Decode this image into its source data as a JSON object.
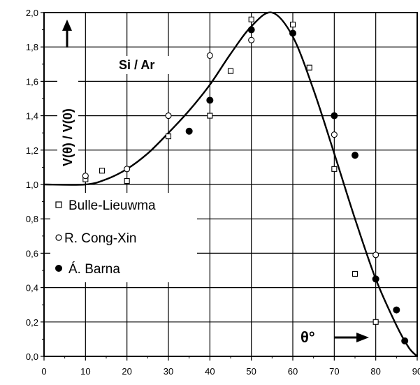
{
  "chart_data": {
    "type": "scatter",
    "title": "",
    "annotation": "Si / Ar",
    "xlabel": "θ°",
    "ylabel": "V(θ) / V(0)",
    "xlim": [
      0,
      90
    ],
    "ylim": [
      0.0,
      2.0
    ],
    "x_ticks": [
      "0",
      "10",
      "20",
      "30",
      "40",
      "50",
      "60",
      "70",
      "80",
      "90"
    ],
    "y_ticks": [
      "0,0",
      "0,2",
      "0,4",
      "0,6",
      "0,8",
      "1,0",
      "1,2",
      "1,4",
      "1,6",
      "1,8",
      "2,0"
    ],
    "grid": true,
    "legend_position": "left-middle",
    "series": [
      {
        "name": "Bulle-Lieuwma",
        "marker": "open-square",
        "points": [
          [
            10,
            1.03
          ],
          [
            14,
            1.08
          ],
          [
            20,
            1.02
          ],
          [
            30,
            1.28
          ],
          [
            40,
            1.4
          ],
          [
            45,
            1.66
          ],
          [
            50,
            1.96
          ],
          [
            60,
            1.93
          ],
          [
            64,
            1.68
          ],
          [
            70,
            1.09
          ],
          [
            75,
            0.48
          ],
          [
            80,
            0.2
          ]
        ]
      },
      {
        "name": "R. Cong-Xin",
        "marker": "open-circle",
        "points": [
          [
            10,
            1.05
          ],
          [
            20,
            1.09
          ],
          [
            30,
            1.4
          ],
          [
            40,
            1.75
          ],
          [
            50,
            1.84
          ],
          [
            70,
            1.29
          ],
          [
            80,
            0.59
          ]
        ]
      },
      {
        "name": "Á. Barna",
        "marker": "filled-circle",
        "points": [
          [
            35,
            1.31
          ],
          [
            40,
            1.49
          ],
          [
            50,
            1.9
          ],
          [
            60,
            1.88
          ],
          [
            70,
            1.4
          ],
          [
            75,
            1.17
          ],
          [
            80,
            0.45
          ],
          [
            85,
            0.27
          ],
          [
            87,
            0.09
          ]
        ]
      },
      {
        "name": "",
        "marker": "line",
        "points": [
          [
            0,
            1.0
          ],
          [
            10,
            1.0
          ],
          [
            15,
            1.03
          ],
          [
            20,
            1.09
          ],
          [
            25,
            1.18
          ],
          [
            30,
            1.3
          ],
          [
            35,
            1.43
          ],
          [
            40,
            1.58
          ],
          [
            45,
            1.76
          ],
          [
            50,
            1.92
          ],
          [
            55,
            2.0
          ],
          [
            60,
            1.86
          ],
          [
            65,
            1.55
          ],
          [
            70,
            1.18
          ],
          [
            75,
            0.8
          ],
          [
            80,
            0.45
          ],
          [
            85,
            0.18
          ],
          [
            88,
            0.05
          ],
          [
            90,
            0.0
          ]
        ]
      }
    ]
  }
}
